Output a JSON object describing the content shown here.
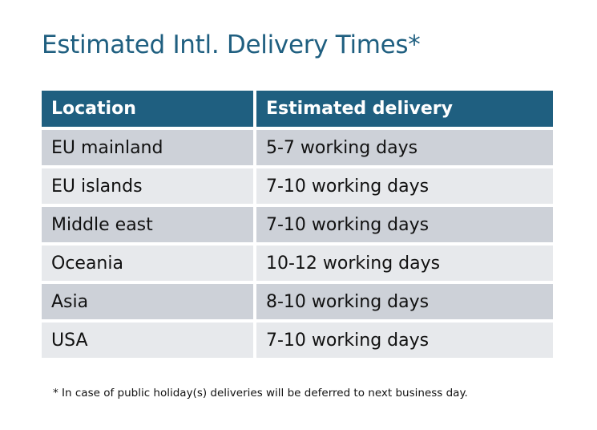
{
  "title": "Estimated Intl. Delivery Times*",
  "colors": {
    "header_bg": "#1F5F80",
    "row_odd": "#CDD1D8",
    "row_even": "#E7E9EC",
    "title": "#1F5F80"
  },
  "table": {
    "headers": [
      "Location",
      "Estimated delivery"
    ],
    "rows": [
      [
        "EU mainland",
        "5-7 working days"
      ],
      [
        "EU islands",
        "7-10 working days"
      ],
      [
        "Middle east",
        "7-10 working days"
      ],
      [
        "Oceania",
        "10-12 working days"
      ],
      [
        "Asia",
        "8-10 working days"
      ],
      [
        "USA",
        "7-10 working days"
      ]
    ]
  },
  "footnote": "* In case of public holiday(s) deliveries will be deferred to next business day."
}
